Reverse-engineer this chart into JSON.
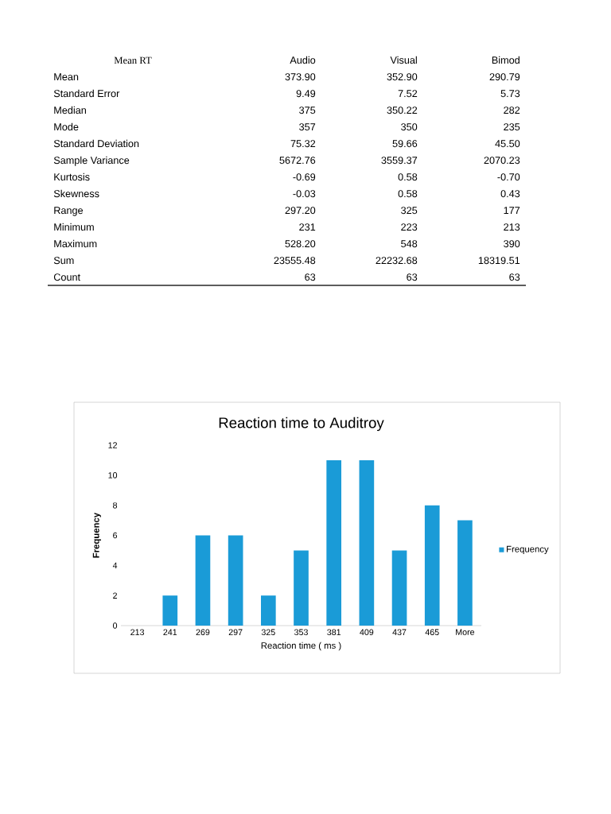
{
  "chart_data": [
    {
      "type": "other",
      "title": "Mean RT",
      "categories": [
        "Audio",
        "Visual",
        "Bimod"
      ],
      "y_categories": [
        "Mean",
        "Standard Error",
        "Median",
        "Mode",
        "Standard Deviation",
        "Sample Variance",
        "Kurtosis",
        "Skewness",
        "Range",
        "Minimum",
        "Maximum",
        "Sum",
        "Count"
      ],
      "cell_labels": [
        [
          "373.90",
          "352.90",
          "290.79"
        ],
        [
          "9.49",
          "7.52",
          "5.73"
        ],
        [
          "375",
          "350.22",
          "282"
        ],
        [
          "357",
          "350",
          "235"
        ],
        [
          "75.32",
          "59.66",
          "45.50"
        ],
        [
          "5672.76",
          "3559.37",
          "2070.23"
        ],
        [
          "-0.69",
          "0.58",
          "-0.70"
        ],
        [
          "-0.03",
          "0.58",
          "0.43"
        ],
        [
          "297.20",
          "325",
          "177"
        ],
        [
          "231",
          "223",
          "213"
        ],
        [
          "528.20",
          "548",
          "390"
        ],
        [
          "23555.48",
          "22232.68",
          "18319.51"
        ],
        [
          "63",
          "63",
          "63"
        ]
      ]
    },
    {
      "type": "bar",
      "title": "Reaction time to Auditroy",
      "xlabel": "Reaction time ( ms )",
      "ylabel": "Frequency",
      "categories": [
        "213",
        "241",
        "269",
        "297",
        "325",
        "353",
        "381",
        "409",
        "437",
        "465",
        "More"
      ],
      "series": [
        {
          "name": "Frequency",
          "color": "#1a9bd7",
          "values": [
            0,
            2,
            6,
            6,
            2,
            5,
            11,
            11,
            5,
            8,
            7
          ]
        }
      ],
      "ylim": [
        0,
        12
      ],
      "yticks": [
        0,
        2,
        4,
        6,
        8,
        10,
        12
      ],
      "legend": "right",
      "grid": false
    }
  ]
}
